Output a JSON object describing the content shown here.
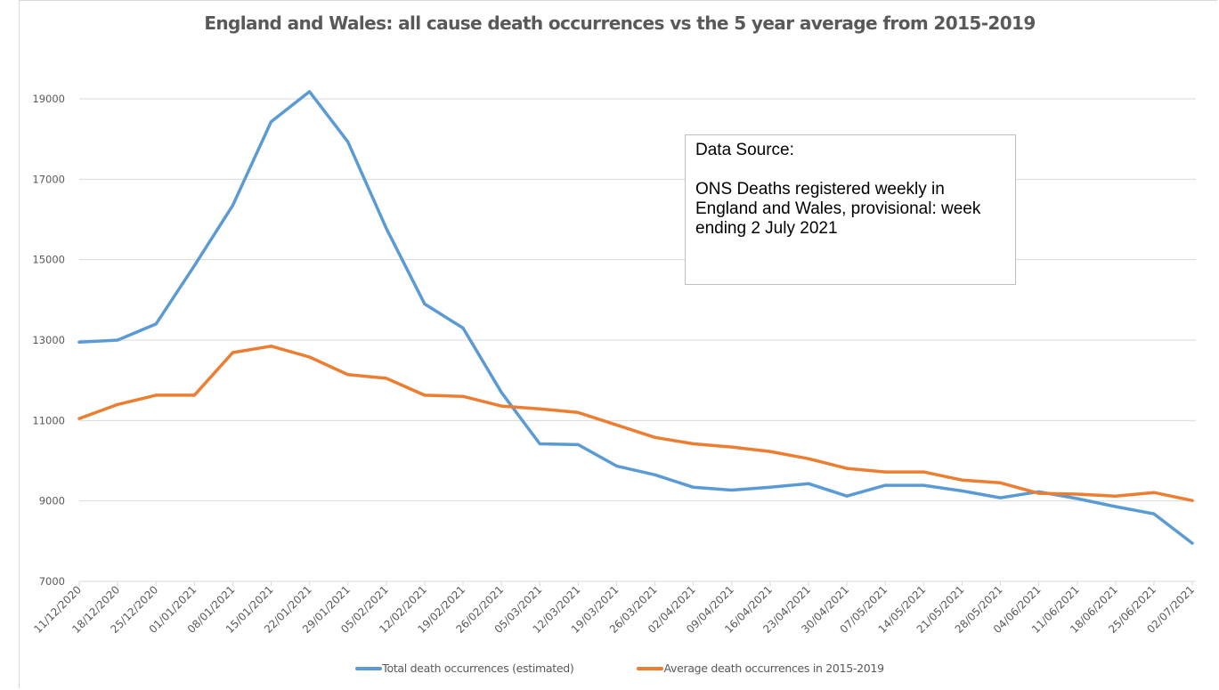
{
  "chart_data": {
    "type": "line",
    "title": "England and Wales: all cause death occurrences vs the 5 year average from 2015-2019",
    "xlabel": "",
    "ylabel": "",
    "ylim": [
      7000,
      19000
    ],
    "y_ticks": [
      "19000",
      "17000",
      "15000",
      "13000",
      "11000",
      "9000",
      "7000"
    ],
    "y_tick_values": [
      19000,
      17000,
      15000,
      13000,
      11000,
      9000,
      7000
    ],
    "grid": true,
    "legend_position": "bottom",
    "x": [
      "11/12/2020",
      "18/12/2020",
      "25/12/2020",
      "01/01/2021",
      "08/01/2021",
      "15/01/2021",
      "22/01/2021",
      "29/01/2021",
      "05/02/2021",
      "12/02/2021",
      "19/02/2021",
      "26/02/2021",
      "05/03/2021",
      "12/03/2021",
      "19/03/2021",
      "26/03/2021",
      "02/04/2021",
      "09/04/2021",
      "16/04/2021",
      "23/04/2021",
      "30/04/2021",
      "07/05/2021",
      "14/05/2021",
      "21/05/2021",
      "28/05/2021",
      "04/06/2021",
      "11/06/2021",
      "18/06/2021",
      "25/06/2021",
      "02/07/2021"
    ],
    "series": [
      {
        "name": "Total death occurrences (estimated)",
        "color": "#5b9bd5",
        "values": [
          12950,
          13000,
          13400,
          14850,
          16350,
          18430,
          19180,
          17930,
          15780,
          13900,
          13300,
          11700,
          10420,
          10400,
          9870,
          9650,
          9340,
          9270,
          9340,
          9430,
          9120,
          9390,
          9390,
          9250,
          9080,
          9230,
          9060,
          8860,
          8680,
          7950
        ]
      },
      {
        "name": "Average death occurrences in 2015-2019",
        "color": "#ed7d31",
        "values": [
          11050,
          11400,
          11630,
          11630,
          12690,
          12850,
          12580,
          12140,
          12050,
          11630,
          11600,
          11360,
          11290,
          11200,
          10890,
          10580,
          10420,
          10340,
          10230,
          10050,
          9810,
          9720,
          9720,
          9520,
          9450,
          9190,
          9170,
          9120,
          9210,
          9010
        ]
      }
    ],
    "annotation": {
      "heading": "Data Source:",
      "lines": [
        "ONS Deaths registered weekly in",
        "England and Wales, provisional: week",
        "ending 2 July 2021"
      ]
    }
  }
}
